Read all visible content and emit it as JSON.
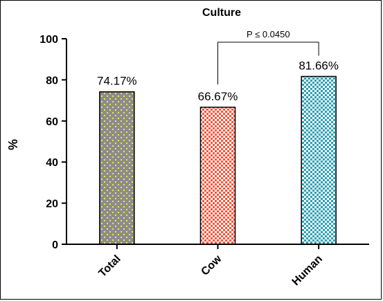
{
  "chart_data": {
    "type": "bar",
    "title": "Culture",
    "ylabel": "%",
    "xlabel": "",
    "ylim": [
      0,
      100
    ],
    "yticks": [
      "0",
      "20",
      "40",
      "60",
      "80",
      "100"
    ],
    "categories": [
      "Total",
      "Cow",
      "Human"
    ],
    "values": [
      74.17,
      66.67,
      81.66
    ],
    "data_labels": [
      "74.17%",
      "66.67%",
      "81.66%"
    ],
    "bar_colors": [
      "#8c8c8c",
      "#f0573c",
      "#2ba0b5"
    ],
    "pattern_colors": [
      "#f2ee4c",
      "#ffffff",
      "#ffffff"
    ],
    "grid": false,
    "annotation": {
      "text": "P ≤ 0.0450",
      "between": [
        "Cow",
        "Human"
      ]
    }
  }
}
